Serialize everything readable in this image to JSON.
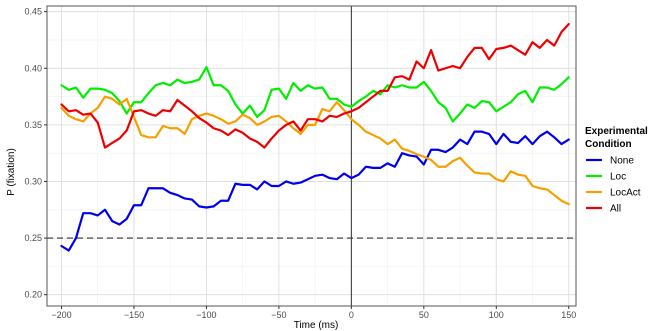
{
  "chart_data": {
    "type": "line",
    "xlabel": "Time (ms)",
    "ylabel": "P (fixation)",
    "xlim": [
      -210,
      155
    ],
    "ylim": [
      0.19,
      0.455
    ],
    "x_ticks": [
      -200,
      -150,
      -100,
      -50,
      0,
      50,
      100,
      150
    ],
    "x_tick_labels": [
      "−200",
      "−150",
      "−100",
      "−50",
      "0",
      "50",
      "100",
      "150"
    ],
    "y_ticks": [
      0.2,
      0.25,
      0.3,
      0.35,
      0.4,
      0.45
    ],
    "y_tick_labels": [
      "0.20",
      "0.25",
      "0.30",
      "0.35",
      "0.40",
      "0.45"
    ],
    "grid": true,
    "reference_lines": {
      "horizontal_dashed_y": 0.25,
      "vertical_solid_x": 0
    },
    "legend": {
      "title": "Experimental Condition",
      "title_lines": [
        "Experimental",
        "Condition"
      ],
      "position": "right"
    },
    "series": [
      {
        "name": "None",
        "color": "#0000ee",
        "points": [
          [
            -200,
            0.243
          ],
          [
            -195,
            0.239
          ],
          [
            -190,
            0.25
          ],
          [
            -185,
            0.272
          ],
          [
            -180,
            0.272
          ],
          [
            -175,
            0.27
          ],
          [
            -170,
            0.275
          ],
          [
            -165,
            0.265
          ],
          [
            -160,
            0.262
          ],
          [
            -155,
            0.267
          ],
          [
            -150,
            0.279
          ],
          [
            -145,
            0.279
          ],
          [
            -140,
            0.294
          ],
          [
            -135,
            0.294
          ],
          [
            -130,
            0.294
          ],
          [
            -125,
            0.29
          ],
          [
            -120,
            0.288
          ],
          [
            -115,
            0.285
          ],
          [
            -110,
            0.284
          ],
          [
            -105,
            0.278
          ],
          [
            -100,
            0.277
          ],
          [
            -95,
            0.278
          ],
          [
            -90,
            0.283
          ],
          [
            -85,
            0.283
          ],
          [
            -80,
            0.298
          ],
          [
            -75,
            0.297
          ],
          [
            -70,
            0.297
          ],
          [
            -65,
            0.293
          ],
          [
            -60,
            0.3
          ],
          [
            -55,
            0.296
          ],
          [
            -50,
            0.296
          ],
          [
            -45,
            0.3
          ],
          [
            -40,
            0.298
          ],
          [
            -35,
            0.299
          ],
          [
            -30,
            0.302
          ],
          [
            -25,
            0.305
          ],
          [
            -20,
            0.306
          ],
          [
            -15,
            0.303
          ],
          [
            -10,
            0.302
          ],
          [
            -5,
            0.307
          ],
          [
            0,
            0.303
          ],
          [
            5,
            0.306
          ],
          [
            10,
            0.313
          ],
          [
            15,
            0.312
          ],
          [
            20,
            0.312
          ],
          [
            25,
            0.316
          ],
          [
            30,
            0.313
          ],
          [
            35,
            0.325
          ],
          [
            40,
            0.323
          ],
          [
            45,
            0.322
          ],
          [
            50,
            0.315
          ],
          [
            55,
            0.328
          ],
          [
            60,
            0.328
          ],
          [
            65,
            0.326
          ],
          [
            70,
            0.33
          ],
          [
            75,
            0.337
          ],
          [
            80,
            0.333
          ],
          [
            85,
            0.344
          ],
          [
            90,
            0.344
          ],
          [
            95,
            0.342
          ],
          [
            100,
            0.333
          ],
          [
            105,
            0.342
          ],
          [
            110,
            0.335
          ],
          [
            115,
            0.334
          ],
          [
            120,
            0.34
          ],
          [
            125,
            0.333
          ],
          [
            130,
            0.34
          ],
          [
            135,
            0.344
          ],
          [
            140,
            0.339
          ],
          [
            145,
            0.333
          ],
          [
            150,
            0.337
          ]
        ]
      },
      {
        "name": "Loc",
        "color": "#00ee00",
        "points": [
          [
            -200,
            0.385
          ],
          [
            -195,
            0.381
          ],
          [
            -190,
            0.383
          ],
          [
            -185,
            0.374
          ],
          [
            -180,
            0.382
          ],
          [
            -175,
            0.382
          ],
          [
            -170,
            0.381
          ],
          [
            -165,
            0.378
          ],
          [
            -160,
            0.371
          ],
          [
            -155,
            0.36
          ],
          [
            -150,
            0.37
          ],
          [
            -145,
            0.37
          ],
          [
            -140,
            0.378
          ],
          [
            -135,
            0.385
          ],
          [
            -130,
            0.387
          ],
          [
            -125,
            0.385
          ],
          [
            -120,
            0.39
          ],
          [
            -115,
            0.387
          ],
          [
            -110,
            0.388
          ],
          [
            -105,
            0.39
          ],
          [
            -100,
            0.401
          ],
          [
            -95,
            0.385
          ],
          [
            -90,
            0.385
          ],
          [
            -85,
            0.38
          ],
          [
            -80,
            0.368
          ],
          [
            -75,
            0.36
          ],
          [
            -70,
            0.367
          ],
          [
            -65,
            0.357
          ],
          [
            -60,
            0.363
          ],
          [
            -55,
            0.381
          ],
          [
            -50,
            0.382
          ],
          [
            -45,
            0.373
          ],
          [
            -40,
            0.387
          ],
          [
            -35,
            0.38
          ],
          [
            -30,
            0.385
          ],
          [
            -25,
            0.382
          ],
          [
            -20,
            0.383
          ],
          [
            -15,
            0.373
          ],
          [
            -10,
            0.373
          ],
          [
            -5,
            0.368
          ],
          [
            0,
            0.366
          ],
          [
            5,
            0.371
          ],
          [
            10,
            0.375
          ],
          [
            15,
            0.38
          ],
          [
            20,
            0.377
          ],
          [
            25,
            0.385
          ],
          [
            30,
            0.383
          ],
          [
            35,
            0.385
          ],
          [
            40,
            0.383
          ],
          [
            45,
            0.383
          ],
          [
            50,
            0.388
          ],
          [
            55,
            0.38
          ],
          [
            60,
            0.37
          ],
          [
            65,
            0.365
          ],
          [
            70,
            0.353
          ],
          [
            75,
            0.36
          ],
          [
            80,
            0.368
          ],
          [
            85,
            0.365
          ],
          [
            90,
            0.371
          ],
          [
            95,
            0.37
          ],
          [
            100,
            0.362
          ],
          [
            105,
            0.366
          ],
          [
            110,
            0.37
          ],
          [
            115,
            0.377
          ],
          [
            120,
            0.38
          ],
          [
            125,
            0.37
          ],
          [
            130,
            0.383
          ],
          [
            135,
            0.383
          ],
          [
            140,
            0.381
          ],
          [
            145,
            0.386
          ],
          [
            150,
            0.392
          ]
        ]
      },
      {
        "name": "LocAct",
        "color": "#f5a000",
        "points": [
          [
            -200,
            0.365
          ],
          [
            -195,
            0.358
          ],
          [
            -190,
            0.355
          ],
          [
            -185,
            0.353
          ],
          [
            -180,
            0.36
          ],
          [
            -175,
            0.365
          ],
          [
            -170,
            0.375
          ],
          [
            -165,
            0.373
          ],
          [
            -160,
            0.368
          ],
          [
            -155,
            0.373
          ],
          [
            -150,
            0.357
          ],
          [
            -145,
            0.341
          ],
          [
            -140,
            0.339
          ],
          [
            -135,
            0.339
          ],
          [
            -130,
            0.349
          ],
          [
            -125,
            0.347
          ],
          [
            -120,
            0.347
          ],
          [
            -115,
            0.342
          ],
          [
            -110,
            0.355
          ],
          [
            -105,
            0.358
          ],
          [
            -100,
            0.36
          ],
          [
            -95,
            0.358
          ],
          [
            -90,
            0.355
          ],
          [
            -85,
            0.351
          ],
          [
            -80,
            0.353
          ],
          [
            -75,
            0.359
          ],
          [
            -70,
            0.356
          ],
          [
            -65,
            0.35
          ],
          [
            -60,
            0.353
          ],
          [
            -55,
            0.357
          ],
          [
            -50,
            0.358
          ],
          [
            -45,
            0.353
          ],
          [
            -40,
            0.347
          ],
          [
            -35,
            0.342
          ],
          [
            -30,
            0.35
          ],
          [
            -25,
            0.35
          ],
          [
            -20,
            0.364
          ],
          [
            -15,
            0.362
          ],
          [
            -10,
            0.37
          ],
          [
            -5,
            0.363
          ],
          [
            0,
            0.355
          ],
          [
            5,
            0.35
          ],
          [
            10,
            0.344
          ],
          [
            15,
            0.341
          ],
          [
            20,
            0.338
          ],
          [
            25,
            0.333
          ],
          [
            30,
            0.337
          ],
          [
            35,
            0.329
          ],
          [
            40,
            0.327
          ],
          [
            45,
            0.324
          ],
          [
            50,
            0.322
          ],
          [
            55,
            0.319
          ],
          [
            60,
            0.313
          ],
          [
            65,
            0.313
          ],
          [
            70,
            0.318
          ],
          [
            75,
            0.321
          ],
          [
            80,
            0.314
          ],
          [
            85,
            0.308
          ],
          [
            90,
            0.307
          ],
          [
            95,
            0.307
          ],
          [
            100,
            0.302
          ],
          [
            105,
            0.3
          ],
          [
            110,
            0.309
          ],
          [
            115,
            0.306
          ],
          [
            120,
            0.305
          ],
          [
            125,
            0.296
          ],
          [
            130,
            0.294
          ],
          [
            135,
            0.293
          ],
          [
            140,
            0.288
          ],
          [
            145,
            0.283
          ],
          [
            150,
            0.28
          ]
        ]
      },
      {
        "name": "All",
        "color": "#ee0000",
        "points": [
          [
            -200,
            0.368
          ],
          [
            -195,
            0.362
          ],
          [
            -190,
            0.363
          ],
          [
            -185,
            0.359
          ],
          [
            -180,
            0.36
          ],
          [
            -175,
            0.352
          ],
          [
            -170,
            0.33
          ],
          [
            -165,
            0.334
          ],
          [
            -160,
            0.338
          ],
          [
            -155,
            0.345
          ],
          [
            -150,
            0.362
          ],
          [
            -145,
            0.363
          ],
          [
            -140,
            0.36
          ],
          [
            -135,
            0.358
          ],
          [
            -130,
            0.363
          ],
          [
            -125,
            0.362
          ],
          [
            -120,
            0.372
          ],
          [
            -115,
            0.367
          ],
          [
            -110,
            0.362
          ],
          [
            -105,
            0.356
          ],
          [
            -100,
            0.352
          ],
          [
            -95,
            0.347
          ],
          [
            -90,
            0.345
          ],
          [
            -85,
            0.341
          ],
          [
            -80,
            0.346
          ],
          [
            -75,
            0.343
          ],
          [
            -70,
            0.338
          ],
          [
            -65,
            0.335
          ],
          [
            -60,
            0.33
          ],
          [
            -55,
            0.338
          ],
          [
            -50,
            0.345
          ],
          [
            -45,
            0.35
          ],
          [
            -40,
            0.353
          ],
          [
            -35,
            0.345
          ],
          [
            -30,
            0.355
          ],
          [
            -25,
            0.355
          ],
          [
            -20,
            0.353
          ],
          [
            -15,
            0.358
          ],
          [
            -10,
            0.357
          ],
          [
            -5,
            0.36
          ],
          [
            0,
            0.362
          ],
          [
            5,
            0.365
          ],
          [
            10,
            0.37
          ],
          [
            15,
            0.375
          ],
          [
            20,
            0.38
          ],
          [
            25,
            0.38
          ],
          [
            30,
            0.392
          ],
          [
            35,
            0.393
          ],
          [
            40,
            0.39
          ],
          [
            45,
            0.406
          ],
          [
            50,
            0.4
          ],
          [
            55,
            0.416
          ],
          [
            60,
            0.398
          ],
          [
            65,
            0.4
          ],
          [
            70,
            0.402
          ],
          [
            75,
            0.4
          ],
          [
            80,
            0.41
          ],
          [
            85,
            0.418
          ],
          [
            90,
            0.418
          ],
          [
            95,
            0.408
          ],
          [
            100,
            0.417
          ],
          [
            105,
            0.418
          ],
          [
            110,
            0.42
          ],
          [
            115,
            0.416
          ],
          [
            120,
            0.412
          ],
          [
            125,
            0.423
          ],
          [
            130,
            0.418
          ],
          [
            135,
            0.425
          ],
          [
            140,
            0.42
          ],
          [
            145,
            0.432
          ],
          [
            150,
            0.439
          ]
        ]
      }
    ]
  }
}
